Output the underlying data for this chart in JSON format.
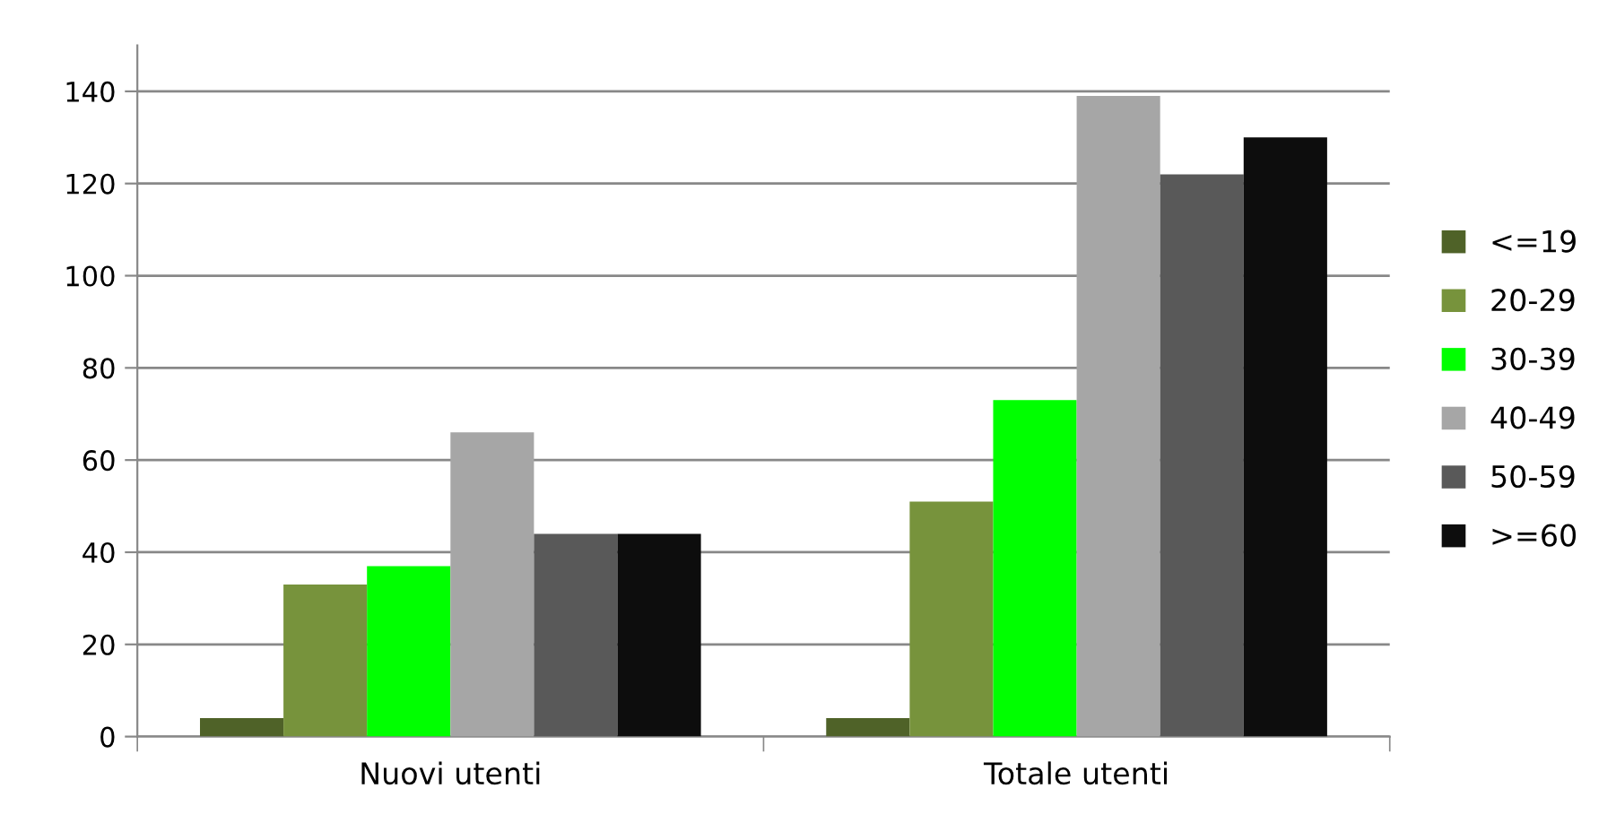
{
  "chart_data": {
    "type": "bar",
    "categories": [
      "Nuovi utenti",
      "Totale utenti"
    ],
    "series": [
      {
        "name": "<=19",
        "color": "#4f6228",
        "values": [
          4,
          4
        ]
      },
      {
        "name": "20-29",
        "color": "#77933c",
        "values": [
          33,
          51
        ]
      },
      {
        "name": "30-39",
        "color": "#00ff00",
        "values": [
          37,
          73
        ]
      },
      {
        "name": "40-49",
        "color": "#a6a6a6",
        "values": [
          66,
          139
        ]
      },
      {
        "name": "50-59",
        "color": "#595959",
        "values": [
          44,
          122
        ]
      },
      {
        "name": ">=60",
        "color": "#0d0d0d",
        "values": [
          44,
          130
        ]
      }
    ],
    "ylim": [
      0,
      150
    ],
    "yticks": [
      0,
      20,
      40,
      60,
      80,
      100,
      120,
      140
    ],
    "grid": "y",
    "legend": "right"
  }
}
